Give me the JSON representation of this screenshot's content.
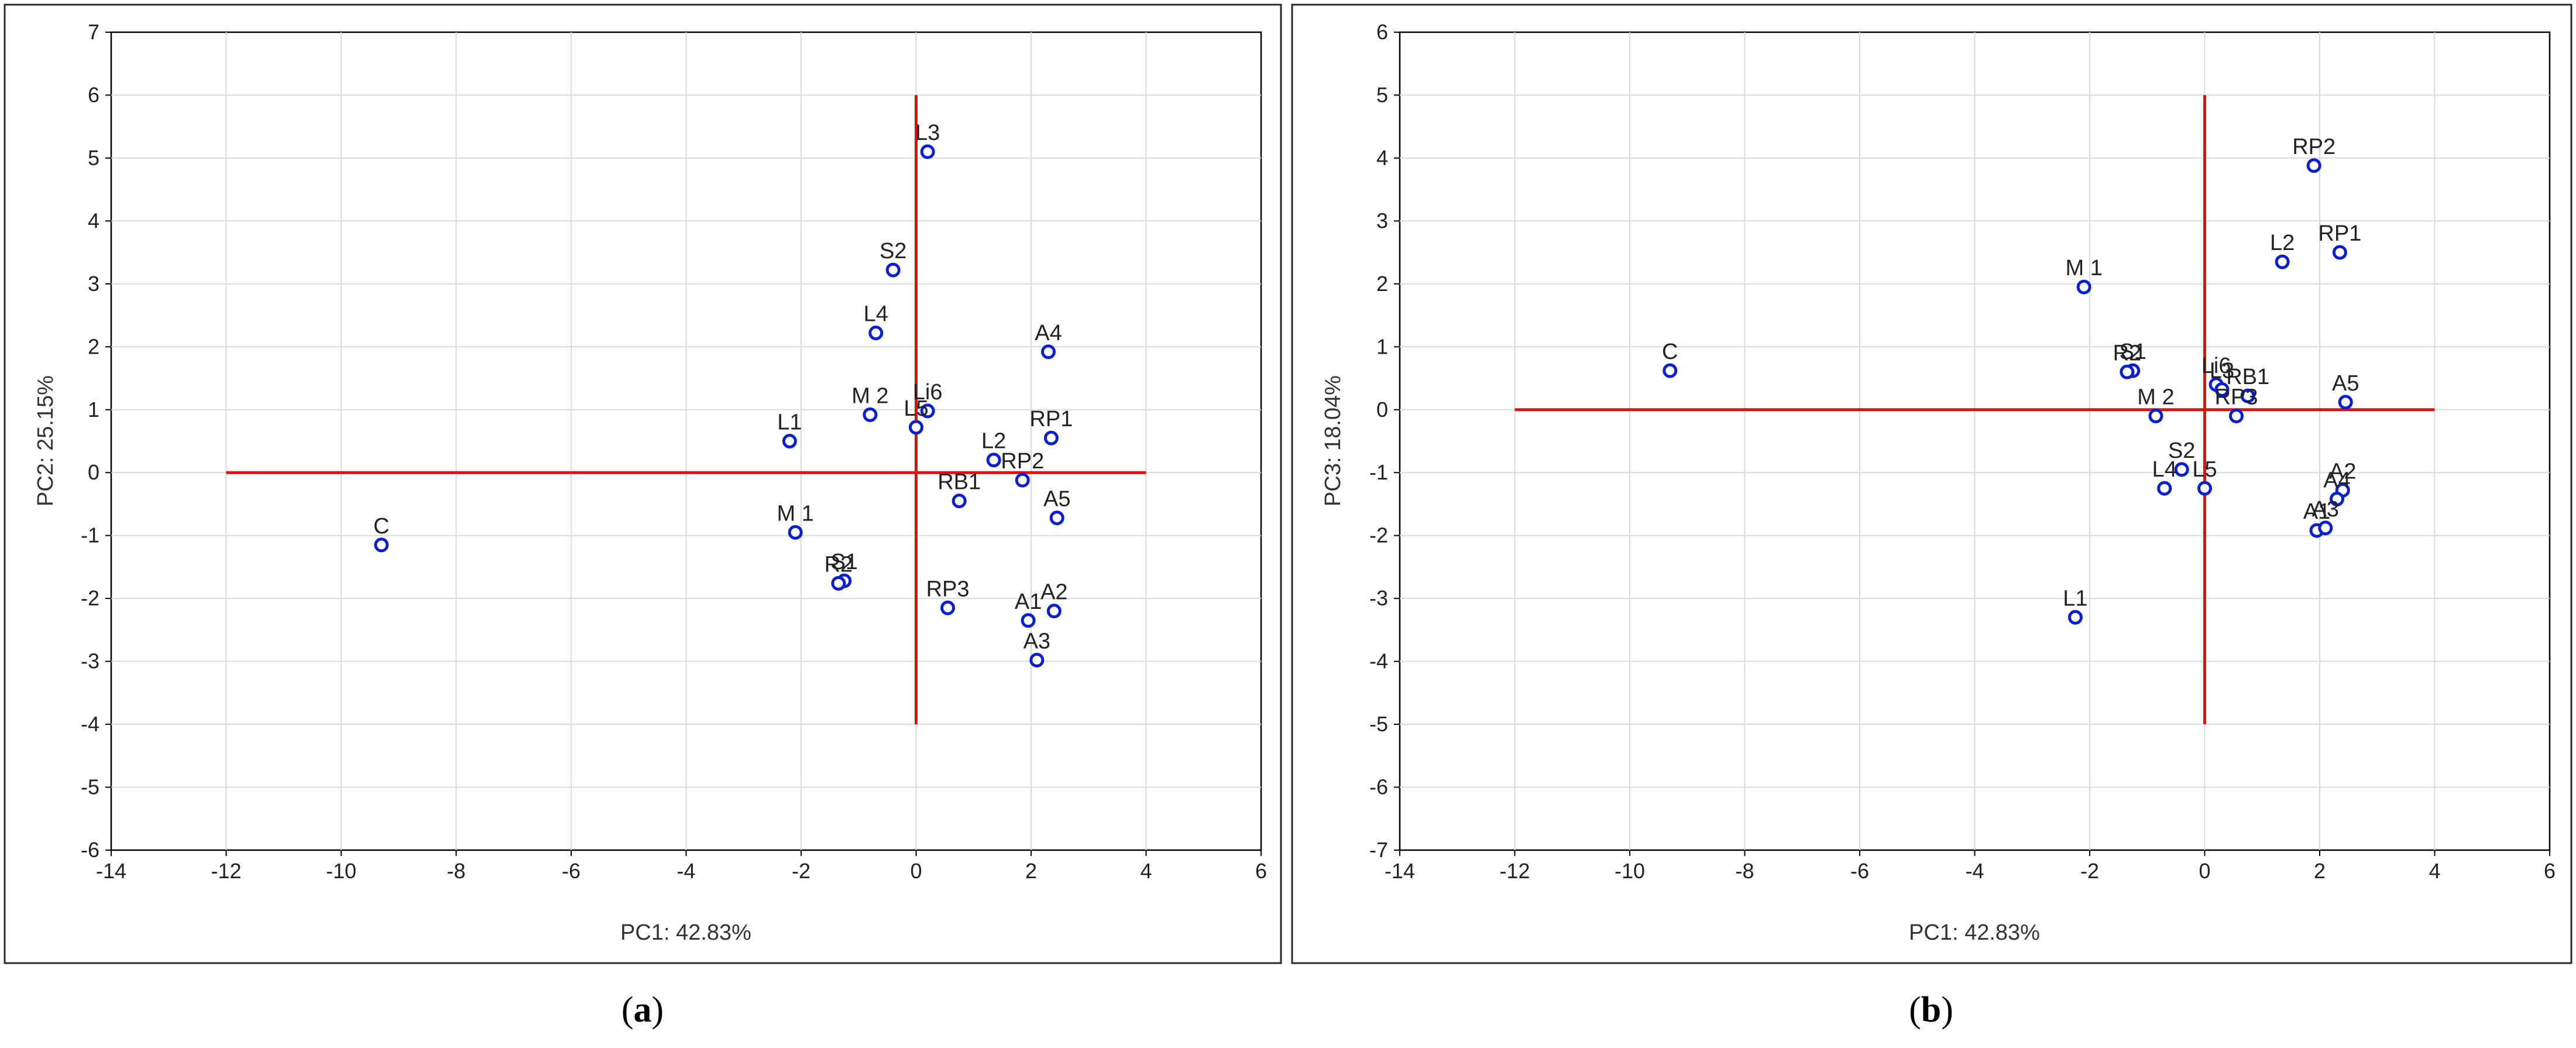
{
  "chart_data": [
    {
      "panel": "a",
      "type": "scatter",
      "caption_letter": "a",
      "xlabel": "PC1: 42.83%",
      "ylabel": "PC2: 25.15%",
      "xlim": [
        -14,
        6
      ],
      "ylim": [
        -6,
        7
      ],
      "xticks": [
        -14,
        -12,
        -10,
        -8,
        -6,
        -4,
        -2,
        0,
        2,
        4,
        6
      ],
      "yticks": [
        -6,
        -5,
        -4,
        -3,
        -2,
        -1,
        0,
        1,
        2,
        3,
        4,
        5,
        6,
        7
      ],
      "grid": true,
      "colors": {
        "points": "#0a1fd0",
        "reference_lines": "#e01010"
      },
      "reference_lines": [
        {
          "orientation": "horizontal",
          "at": 0,
          "from": -12,
          "to": 4
        },
        {
          "orientation": "vertical",
          "at": 0,
          "from": -4,
          "to": 6
        }
      ],
      "points": [
        {
          "label": "C",
          "x": -9.3,
          "y": -1.15
        },
        {
          "label": "L1",
          "x": -2.2,
          "y": 0.5
        },
        {
          "label": "M 2",
          "x": -0.8,
          "y": 0.92
        },
        {
          "label": "L3",
          "x": 0.2,
          "y": 5.1
        },
        {
          "label": "S2",
          "x": -0.4,
          "y": 3.22
        },
        {
          "label": "L4",
          "x": -0.7,
          "y": 2.22
        },
        {
          "label": "A4",
          "x": 2.3,
          "y": 1.92
        },
        {
          "label": "Li6",
          "x": 0.2,
          "y": 0.98
        },
        {
          "label": "L5",
          "x": 0.0,
          "y": 0.72
        },
        {
          "label": "RP1",
          "x": 2.35,
          "y": 0.55
        },
        {
          "label": "L2",
          "x": 1.35,
          "y": 0.2
        },
        {
          "label": "RP2",
          "x": 1.85,
          "y": -0.12
        },
        {
          "label": "RB1",
          "x": 0.75,
          "y": -0.45
        },
        {
          "label": "A5",
          "x": 2.45,
          "y": -0.72
        },
        {
          "label": "M 1",
          "x": -2.1,
          "y": -0.95
        },
        {
          "label": "S1",
          "x": -1.25,
          "y": -1.72
        },
        {
          "label": "R2",
          "x": -1.35,
          "y": -1.76
        },
        {
          "label": "RP3",
          "x": 0.55,
          "y": -2.15
        },
        {
          "label": "A1",
          "x": 1.95,
          "y": -2.35
        },
        {
          "label": "A2",
          "x": 2.4,
          "y": -2.2
        },
        {
          "label": "A3",
          "x": 2.1,
          "y": -2.98
        }
      ]
    },
    {
      "panel": "b",
      "type": "scatter",
      "caption_letter": "b",
      "xlabel": "PC1: 42.83%",
      "ylabel": "PC3: 18.04%",
      "xlim": [
        -14,
        6
      ],
      "ylim": [
        -7,
        6
      ],
      "xticks": [
        -14,
        -12,
        -10,
        -8,
        -6,
        -4,
        -2,
        0,
        2,
        4,
        6
      ],
      "yticks": [
        -7,
        -6,
        -5,
        -4,
        -3,
        -2,
        -1,
        0,
        1,
        2,
        3,
        4,
        5,
        6
      ],
      "grid": true,
      "colors": {
        "points": "#0a1fd0",
        "reference_lines": "#e01010"
      },
      "reference_lines": [
        {
          "orientation": "horizontal",
          "at": 0,
          "from": -12,
          "to": 4
        },
        {
          "orientation": "vertical",
          "at": 0,
          "from": -5,
          "to": 5
        }
      ],
      "points": [
        {
          "label": "C",
          "x": -9.3,
          "y": 0.62
        },
        {
          "label": "M 1",
          "x": -2.1,
          "y": 1.95
        },
        {
          "label": "RP2",
          "x": 1.9,
          "y": 3.88
        },
        {
          "label": "L2",
          "x": 1.35,
          "y": 2.35
        },
        {
          "label": "RP1",
          "x": 2.35,
          "y": 2.5
        },
        {
          "label": "S1",
          "x": -1.25,
          "y": 0.62
        },
        {
          "label": "R2",
          "x": -1.35,
          "y": 0.6
        },
        {
          "label": "Li6",
          "x": 0.2,
          "y": 0.4
        },
        {
          "label": "L3",
          "x": 0.3,
          "y": 0.32
        },
        {
          "label": "RB1",
          "x": 0.75,
          "y": 0.22
        },
        {
          "label": "A5",
          "x": 2.45,
          "y": 0.12
        },
        {
          "label": "M 2",
          "x": -0.85,
          "y": -0.1
        },
        {
          "label": "RP3",
          "x": 0.55,
          "y": -0.1
        },
        {
          "label": "S2",
          "x": -0.4,
          "y": -0.95
        },
        {
          "label": "L4",
          "x": -0.7,
          "y": -1.25
        },
        {
          "label": "L5",
          "x": 0.0,
          "y": -1.25
        },
        {
          "label": "A2",
          "x": 2.4,
          "y": -1.28
        },
        {
          "label": "A4",
          "x": 2.3,
          "y": -1.42
        },
        {
          "label": "A1",
          "x": 1.95,
          "y": -1.92
        },
        {
          "label": "A3",
          "x": 2.1,
          "y": -1.88
        },
        {
          "label": "L1",
          "x": -2.25,
          "y": -3.3
        }
      ]
    }
  ]
}
